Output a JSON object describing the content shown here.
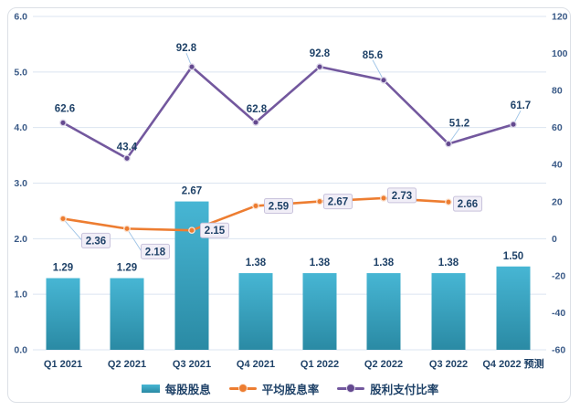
{
  "chart_data": {
    "type": "combo-bar-line",
    "title": "",
    "categories": [
      "Q1 2021",
      "Q2 2021",
      "Q3 2021",
      "Q4 2021",
      "Q1 2022",
      "Q2 2022",
      "Q3 2022",
      "Q4 2022 预测"
    ],
    "series": [
      {
        "name": "每股股息",
        "type": "bar",
        "axis": "left",
        "values": [
          1.29,
          1.29,
          2.67,
          1.38,
          1.38,
          1.38,
          1.38,
          1.5
        ],
        "data_labels": [
          "1.29",
          "1.29",
          "2.67",
          "1.38",
          "1.38",
          "1.38",
          "1.38",
          "1.50"
        ],
        "color_top": "#47B6D4",
        "color_bottom": "#2A8AA4"
      },
      {
        "name": "平均股息率",
        "type": "line",
        "axis": "left",
        "values": [
          2.36,
          2.18,
          2.15,
          2.59,
          2.67,
          2.73,
          2.66,
          null
        ],
        "data_labels": [
          "2.36",
          "2.18",
          "2.15",
          "2.59",
          "2.67",
          "2.73",
          "2.66"
        ],
        "label_style": "boxed",
        "color": "#ED7D31"
      },
      {
        "name": "股利支付比率",
        "type": "line",
        "axis": "right",
        "values": [
          62.6,
          43.4,
          92.8,
          62.8,
          92.8,
          85.6,
          51.2,
          61.7
        ],
        "data_labels": [
          "62.6",
          "43.4",
          "92.8",
          "62.8",
          "92.8",
          "85.6",
          "51.2",
          "61.7"
        ],
        "label_style": "plain",
        "color": "#73589E"
      }
    ],
    "left_axis": {
      "min": 0,
      "max": 6,
      "step": 1,
      "tick_labels": [
        "0.0",
        "1.0",
        "2.0",
        "3.0",
        "4.0",
        "5.0",
        "6.0"
      ]
    },
    "right_axis": {
      "min": -60,
      "max": 120,
      "step": 20,
      "tick_labels": [
        "-60",
        "-40",
        "-20",
        "0",
        "20",
        "40",
        "60",
        "80",
        "100",
        "120"
      ]
    },
    "grid": "horizontal",
    "legend_position": "bottom"
  },
  "colors": {
    "label_text": "#1F4268",
    "axis_text": "#3A5A87",
    "gridline": "#DBE4F0",
    "label_box_bg": "#F1EEF7",
    "label_box_border": "#C9C3DC",
    "leader_line": "#9DC3E6",
    "background": "#FFFFFF",
    "card_border": "#DCE0E6",
    "orange_marker_ring": "#FBE3D1",
    "purple_marker_fill": "#64498F",
    "purple_marker_ring": "#DDD8EA"
  }
}
